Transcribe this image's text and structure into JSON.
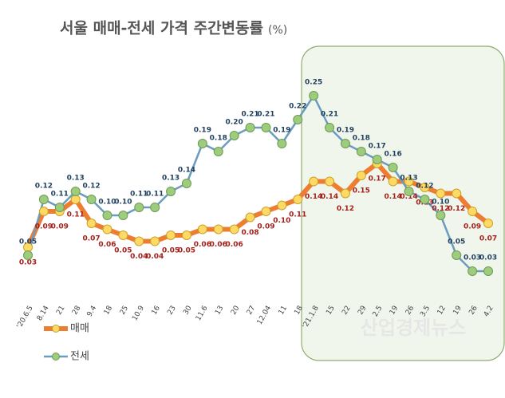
{
  "chart_data": {
    "type": "line",
    "title": "서울 매매-전세 가격 주간변동률",
    "unit": "(%)",
    "categories": [
      "'20.6.5",
      "8.14",
      "21",
      "28",
      "9.4",
      "18",
      "25",
      "10.9",
      "16",
      "23",
      "30",
      "11.6",
      "13",
      "20",
      "27",
      "12.04",
      "11",
      "18",
      "'21.1.8",
      "15",
      "22",
      "29",
      "2.5",
      "19",
      "26",
      "3.5",
      "12",
      "19",
      "26",
      "4.2"
    ],
    "series": [
      {
        "name": "매매",
        "color": "#ed7d31",
        "marker_color": "#ffd966",
        "label_color": "#a3201b",
        "values": [
          0.03,
          0.09,
          0.09,
          0.11,
          0.07,
          0.06,
          0.05,
          0.04,
          0.04,
          0.05,
          0.05,
          0.06,
          0.06,
          0.06,
          0.08,
          0.09,
          0.1,
          0.11,
          0.14,
          0.14,
          0.12,
          0.15,
          0.17,
          0.14,
          0.14,
          0.13,
          0.12,
          0.12,
          0.09,
          0.07
        ],
        "value_labels": [
          "0.03",
          "0.09",
          "0.09",
          "0.11",
          "0.07",
          "0.06",
          "0.05",
          "0.04",
          "0.04",
          "0.05",
          "0.05",
          "0.06",
          "0.06",
          "0.06",
          "0.08",
          "0.09",
          "0.10",
          "0.11",
          "0.14",
          "0.14",
          "0.12",
          "0.15",
          "0.17",
          "0.14",
          "0.14",
          "0.13",
          "0.12",
          "0.12",
          "0.09",
          "0.07"
        ]
      },
      {
        "name": "전세",
        "color": "#6a9cc0",
        "marker_color": "#9ccc7c",
        "label_color": "#1f3f5f",
        "axis": "y2",
        "values": [
          0.05,
          0.12,
          0.11,
          0.13,
          0.12,
          0.1,
          0.1,
          0.11,
          0.11,
          0.13,
          0.14,
          0.19,
          0.18,
          0.2,
          0.21,
          0.21,
          0.19,
          0.22,
          0.25,
          0.21,
          0.19,
          0.18,
          0.17,
          0.16,
          0.13,
          0.12,
          0.1,
          0.05,
          0.03,
          0.03
        ],
        "value_labels": [
          "0.05",
          "0.12",
          "0.11",
          "0.13",
          "0.12",
          "0.10",
          "0.10",
          "0.11",
          "0.11",
          "0.13",
          "0.14",
          "0.19",
          "0.18",
          "0.20",
          "0.21",
          "0.21",
          "0.19",
          "0.22",
          "0.25",
          "0.21",
          "0.19",
          "0.18",
          "0.17",
          "0.16",
          "0.13",
          "0.12",
          "0.10",
          "0.05",
          "0.03",
          "0.03"
        ]
      }
    ],
    "ylim": [
      -0.05,
      0.31
    ],
    "y2lim": [
      0,
      0.27
    ],
    "watermark": "산업경제뉴스"
  }
}
